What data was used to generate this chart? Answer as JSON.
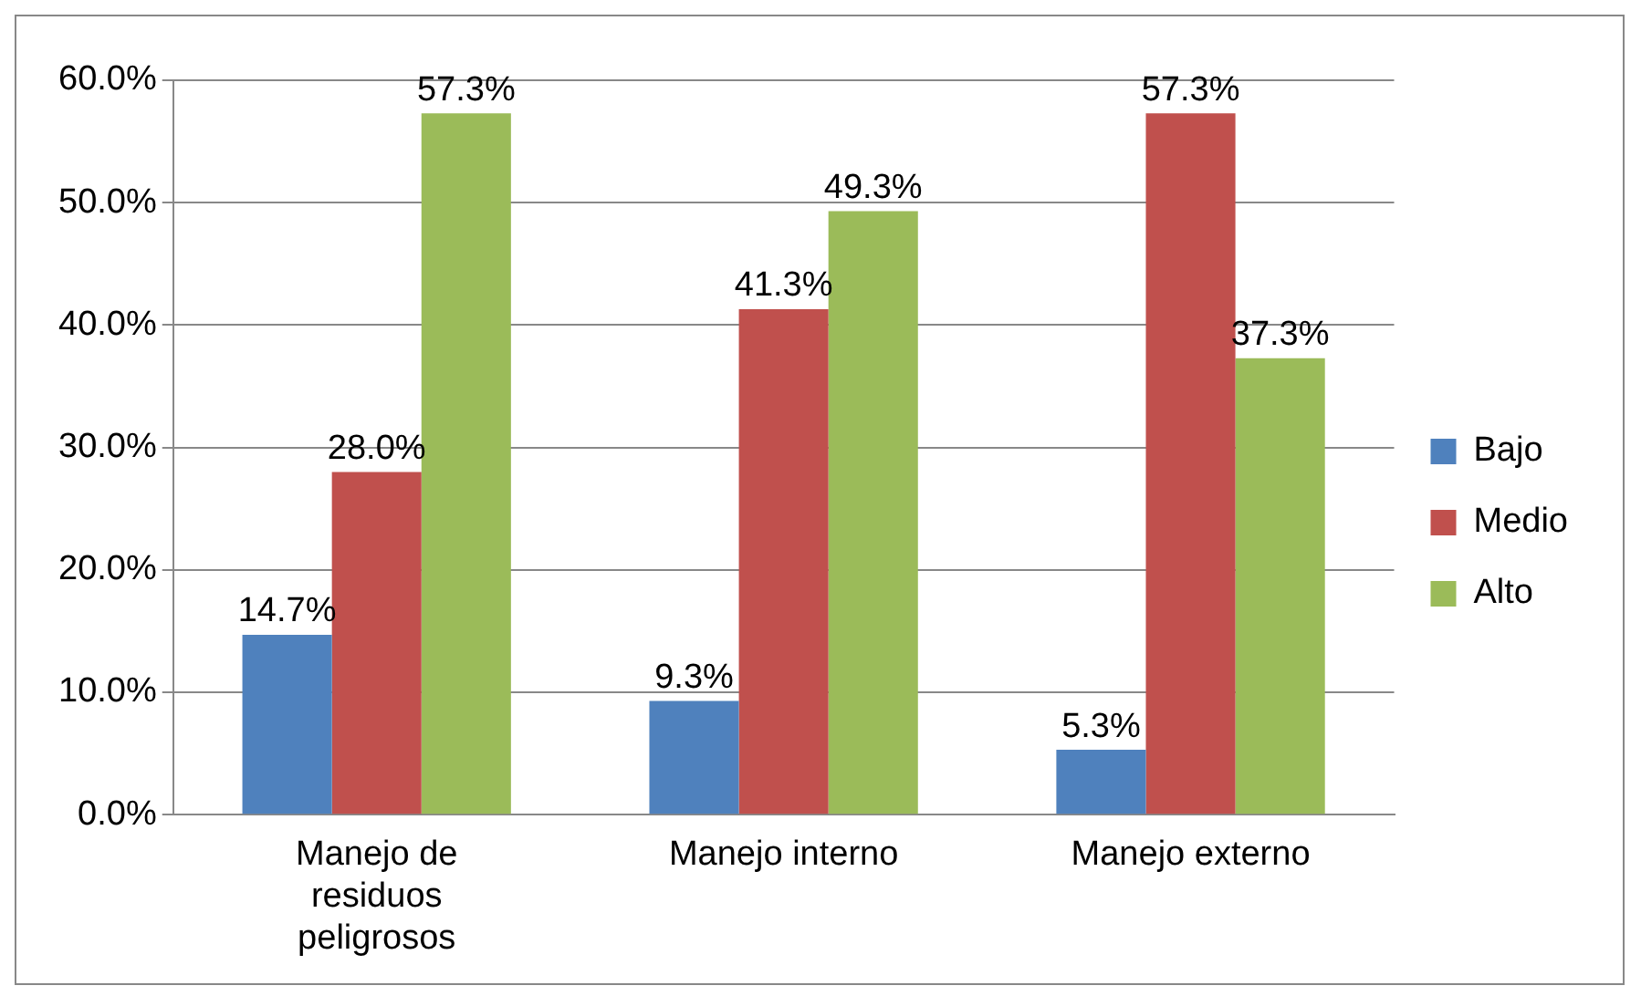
{
  "chart_data": {
    "type": "bar",
    "categories": [
      "Manejo de residuos peligrosos",
      "Manejo interno",
      "Manejo externo"
    ],
    "series": [
      {
        "name": "Bajo",
        "color": "#4f81bd",
        "values": [
          14.7,
          9.3,
          5.3
        ],
        "value_labels": [
          "14.7%",
          "9.3%",
          "5.3%"
        ]
      },
      {
        "name": "Medio",
        "color": "#c0504d",
        "values": [
          28.0,
          41.3,
          57.3
        ],
        "value_labels": [
          "28.0%",
          "41.3%",
          "57.3%"
        ]
      },
      {
        "name": "Alto",
        "color": "#9bbb59",
        "values": [
          57.3,
          49.3,
          37.3
        ],
        "value_labels": [
          "57.3%",
          "49.3%",
          "37.3%"
        ]
      }
    ],
    "ylim": [
      0,
      60
    ],
    "yticks": [
      {
        "value": 0,
        "label": "0.0%"
      },
      {
        "value": 10,
        "label": "10.0%"
      },
      {
        "value": 20,
        "label": "20.0%"
      },
      {
        "value": 30,
        "label": "30.0%"
      },
      {
        "value": 40,
        "label": "40.0%"
      },
      {
        "value": 50,
        "label": "50.0%"
      },
      {
        "value": 60,
        "label": "60.0%"
      }
    ],
    "grid": "y",
    "legend": "right"
  }
}
